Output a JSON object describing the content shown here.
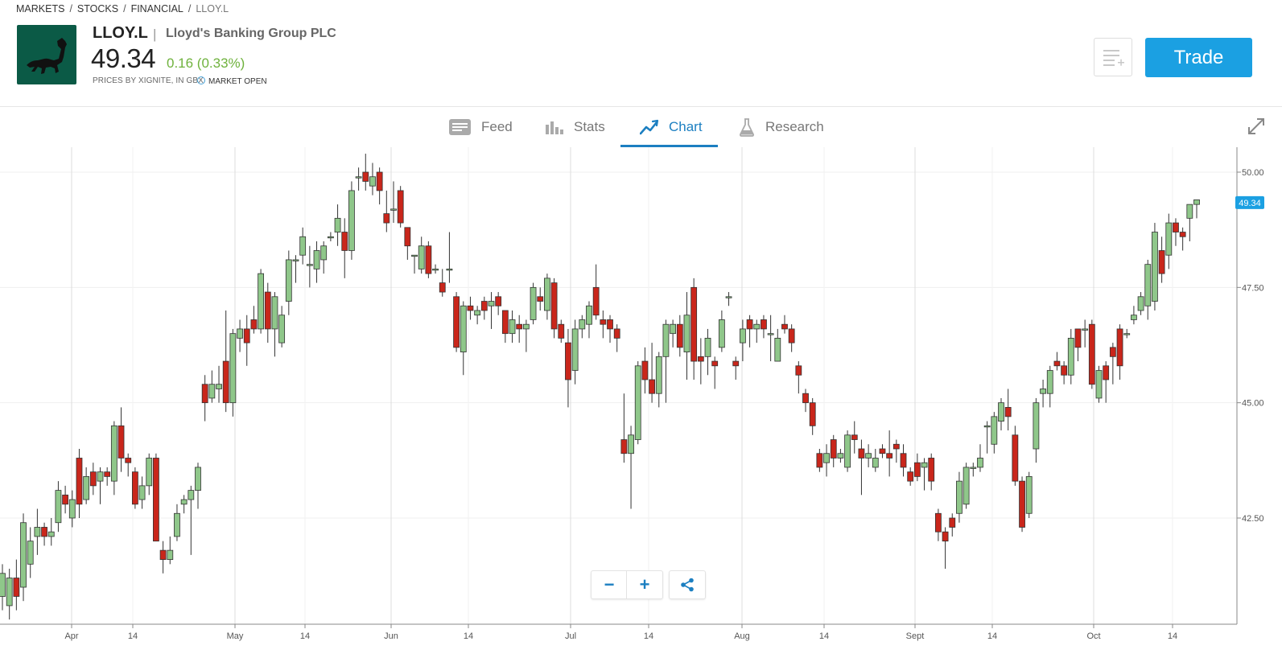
{
  "breadcrumb": [
    "MARKETS",
    "STOCKS",
    "FINANCIAL",
    "LLOY.L"
  ],
  "instrument": {
    "symbol": "LLOY.L",
    "name": "Lloyd's Banking Group PLC",
    "price": "49.34",
    "change": "0.16 (0.33%)",
    "price_source": "PRICES BY XIGNITE, IN GBX",
    "market_status": "MARKET OPEN"
  },
  "actions": {
    "trade_label": "Trade",
    "watchlist_icon": "add-to-watchlist-icon"
  },
  "tabs": [
    {
      "label": "Feed",
      "icon": "feed-icon",
      "active": false
    },
    {
      "label": "Stats",
      "icon": "stats-icon",
      "active": false
    },
    {
      "label": "Chart",
      "icon": "chart-icon",
      "active": true
    },
    {
      "label": "Research",
      "icon": "research-icon",
      "active": false
    }
  ],
  "colors": {
    "up": "#8fc78a",
    "down": "#c9261b",
    "accent": "#1c7fc1",
    "trade": "#1ba0e2",
    "change_positive": "#6fb23d"
  },
  "chart_data": {
    "type": "candlestick",
    "x_tick_labels": [
      "Apr",
      "14",
      "May",
      "14",
      "Jun",
      "14",
      "Jul",
      "14",
      "Aug",
      "14",
      "Sept",
      "14",
      "Oct",
      "14"
    ],
    "y_tick_labels": [
      "50.00",
      "47.50",
      "45.00",
      "42.50"
    ],
    "last_price_label": "49.34",
    "ylim": [
      40.4,
      50.6
    ],
    "grid": true,
    "candles": [
      [
        40.8,
        41.3,
        40.5,
        41.5
      ],
      [
        40.6,
        41.2,
        40.3,
        41.4
      ],
      [
        41.2,
        40.8,
        40.5,
        41.6
      ],
      [
        41.0,
        42.4,
        40.7,
        42.6
      ],
      [
        41.5,
        42.0,
        41.2,
        42.3
      ],
      [
        42.1,
        42.3,
        41.7,
        42.7
      ],
      [
        42.3,
        42.1,
        41.9,
        42.4
      ],
      [
        42.1,
        42.2,
        41.9,
        42.5
      ],
      [
        42.4,
        43.1,
        42.2,
        43.3
      ],
      [
        43.0,
        42.8,
        42.6,
        43.2
      ],
      [
        42.5,
        42.9,
        42.3,
        43.1
      ],
      [
        43.8,
        42.8,
        42.5,
        44.0
      ],
      [
        42.9,
        43.4,
        42.8,
        43.6
      ],
      [
        43.5,
        43.2,
        43.0,
        43.7
      ],
      [
        43.3,
        43.5,
        42.8,
        43.6
      ],
      [
        43.5,
        43.4,
        43.2,
        43.6
      ],
      [
        43.3,
        44.5,
        43.0,
        44.6
      ],
      [
        44.5,
        43.8,
        43.5,
        44.9
      ],
      [
        43.8,
        43.7,
        43.4,
        43.9
      ],
      [
        43.5,
        42.8,
        42.7,
        43.6
      ],
      [
        42.9,
        43.2,
        42.7,
        43.4
      ],
      [
        43.2,
        43.8,
        43.0,
        43.9
      ],
      [
        43.8,
        42.0,
        42.1,
        43.9
      ],
      [
        41.8,
        41.6,
        41.3,
        42.0
      ],
      [
        41.6,
        41.8,
        41.5,
        42.1
      ],
      [
        42.1,
        42.6,
        42.0,
        42.8
      ],
      [
        42.8,
        42.9,
        42.6,
        43.0
      ],
      [
        42.9,
        43.1,
        41.7,
        43.2
      ],
      [
        43.1,
        43.6,
        42.7,
        43.7
      ],
      [
        45.4,
        45.0,
        44.6,
        45.6
      ],
      [
        45.1,
        45.4,
        45.0,
        45.7
      ],
      [
        45.3,
        45.4,
        45.0,
        45.8
      ],
      [
        45.9,
        45.0,
        44.8,
        47.0
      ],
      [
        45.0,
        46.5,
        44.7,
        46.6
      ],
      [
        46.4,
        46.6,
        46.1,
        46.8
      ],
      [
        46.6,
        46.3,
        45.8,
        46.9
      ],
      [
        46.8,
        46.6,
        46.5,
        47.1
      ],
      [
        46.6,
        47.8,
        46.5,
        47.9
      ],
      [
        47.4,
        46.6,
        46.3,
        47.6
      ],
      [
        46.6,
        47.3,
        46.0,
        47.4
      ],
      [
        46.3,
        46.9,
        46.2,
        47.1
      ],
      [
        47.2,
        48.1,
        46.9,
        48.3
      ],
      [
        48.1,
        48.1,
        47.6,
        48.2
      ],
      [
        48.2,
        48.6,
        48.0,
        48.8
      ],
      [
        48.0,
        48.0,
        47.5,
        48.4
      ],
      [
        47.9,
        48.3,
        47.6,
        48.5
      ],
      [
        48.1,
        48.4,
        47.8,
        48.5
      ],
      [
        48.6,
        48.6,
        48.5,
        48.7
      ],
      [
        48.7,
        49.0,
        48.4,
        49.3
      ],
      [
        48.7,
        48.3,
        47.7,
        49.0
      ],
      [
        48.3,
        49.6,
        48.1,
        49.8
      ],
      [
        49.9,
        49.9,
        49.6,
        50.1
      ],
      [
        50.0,
        49.8,
        49.6,
        50.4
      ],
      [
        49.7,
        49.9,
        49.5,
        50.2
      ],
      [
        50.0,
        49.6,
        49.3,
        50.1
      ],
      [
        49.1,
        48.9,
        48.7,
        49.6
      ],
      [
        49.2,
        49.2,
        48.9,
        49.8
      ],
      [
        49.6,
        48.9,
        48.8,
        49.7
      ],
      [
        48.8,
        48.4,
        48.1,
        48.8
      ],
      [
        48.2,
        48.2,
        47.8,
        48.2
      ],
      [
        47.9,
        48.4,
        47.8,
        48.6
      ],
      [
        48.4,
        47.8,
        47.7,
        48.5
      ],
      [
        47.9,
        47.9,
        47.8,
        48.0
      ],
      [
        47.6,
        47.4,
        47.3,
        47.9
      ],
      [
        47.9,
        47.9,
        47.6,
        48.7
      ],
      [
        47.3,
        46.2,
        46.1,
        47.4
      ],
      [
        46.1,
        47.1,
        45.6,
        47.2
      ],
      [
        47.1,
        47.0,
        46.8,
        47.3
      ],
      [
        46.9,
        47.0,
        46.7,
        47.1
      ],
      [
        47.2,
        47.0,
        46.8,
        47.3
      ],
      [
        47.1,
        47.2,
        46.6,
        47.4
      ],
      [
        47.3,
        47.1,
        46.9,
        47.4
      ],
      [
        47.0,
        46.5,
        46.3,
        47.0
      ],
      [
        46.5,
        46.8,
        46.3,
        47.0
      ],
      [
        46.7,
        46.6,
        46.3,
        46.9
      ],
      [
        46.6,
        46.7,
        46.1,
        46.8
      ],
      [
        46.8,
        47.5,
        46.7,
        47.6
      ],
      [
        47.3,
        47.2,
        47.0,
        47.5
      ],
      [
        47.0,
        47.7,
        46.8,
        47.8
      ],
      [
        47.6,
        46.6,
        46.4,
        47.7
      ],
      [
        46.7,
        46.4,
        46.3,
        46.8
      ],
      [
        46.3,
        45.5,
        44.9,
        46.6
      ],
      [
        45.7,
        46.6,
        45.4,
        46.8
      ],
      [
        46.6,
        46.8,
        46.4,
        46.9
      ],
      [
        46.7,
        47.1,
        46.4,
        47.2
      ],
      [
        47.5,
        46.9,
        46.8,
        48.0
      ],
      [
        46.8,
        46.7,
        46.4,
        47.0
      ],
      [
        46.8,
        46.6,
        46.3,
        46.9
      ],
      [
        46.6,
        46.4,
        46.1,
        46.7
      ],
      [
        44.2,
        43.9,
        43.7,
        45.2
      ],
      [
        43.9,
        44.3,
        42.7,
        44.5
      ],
      [
        44.2,
        45.8,
        44.1,
        45.9
      ],
      [
        45.9,
        45.5,
        45.2,
        46.2
      ],
      [
        45.5,
        45.2,
        45.0,
        46.3
      ],
      [
        45.2,
        46.0,
        44.9,
        46.1
      ],
      [
        46.0,
        46.7,
        45.0,
        46.8
      ],
      [
        46.5,
        46.7,
        46.2,
        46.8
      ],
      [
        46.7,
        46.2,
        46.0,
        46.9
      ],
      [
        46.1,
        46.9,
        45.5,
        47.4
      ],
      [
        47.5,
        45.9,
        45.5,
        47.7
      ],
      [
        46.0,
        45.9,
        45.4,
        46.4
      ],
      [
        46.0,
        46.4,
        45.6,
        46.6
      ],
      [
        45.9,
        45.8,
        45.3,
        46.0
      ],
      [
        46.2,
        46.8,
        46.1,
        47.0
      ],
      [
        47.3,
        47.3,
        47.1,
        47.4
      ],
      [
        45.9,
        45.8,
        45.5,
        46.0
      ],
      [
        46.3,
        46.6,
        45.9,
        46.8
      ],
      [
        46.8,
        46.6,
        46.2,
        46.9
      ],
      [
        46.6,
        46.7,
        46.3,
        46.8
      ],
      [
        46.8,
        46.6,
        46.4,
        46.9
      ],
      [
        46.5,
        46.5,
        45.9,
        46.9
      ],
      [
        45.9,
        46.4,
        45.9,
        46.6
      ],
      [
        46.7,
        46.6,
        46.5,
        46.9
      ],
      [
        46.6,
        46.3,
        46.1,
        46.7
      ],
      [
        45.8,
        45.6,
        45.2,
        45.9
      ],
      [
        45.2,
        45.0,
        44.8,
        45.3
      ],
      [
        45.0,
        44.5,
        44.3,
        45.1
      ],
      [
        43.9,
        43.6,
        43.5,
        44.0
      ],
      [
        43.7,
        43.9,
        43.4,
        44.1
      ],
      [
        44.2,
        43.8,
        43.6,
        44.3
      ],
      [
        43.8,
        43.9,
        43.7,
        44.0
      ],
      [
        43.6,
        44.3,
        43.5,
        44.4
      ],
      [
        44.3,
        44.2,
        43.9,
        44.6
      ],
      [
        44.0,
        43.8,
        43.0,
        44.2
      ],
      [
        43.8,
        43.9,
        43.6,
        44.1
      ],
      [
        43.6,
        43.8,
        43.5,
        44.0
      ],
      [
        44.0,
        43.9,
        43.8,
        44.1
      ],
      [
        43.9,
        43.8,
        43.4,
        44.4
      ],
      [
        44.1,
        44.0,
        43.7,
        44.2
      ],
      [
        43.9,
        43.6,
        43.4,
        44.1
      ],
      [
        43.5,
        43.3,
        43.2,
        43.6
      ],
      [
        43.7,
        43.4,
        43.3,
        43.9
      ],
      [
        43.6,
        43.7,
        43.1,
        43.8
      ],
      [
        43.8,
        43.3,
        43.1,
        43.9
      ],
      [
        42.6,
        42.2,
        42.0,
        42.7
      ],
      [
        42.2,
        42.0,
        41.4,
        42.3
      ],
      [
        42.5,
        42.3,
        42.1,
        42.6
      ],
      [
        42.6,
        43.3,
        42.4,
        43.5
      ],
      [
        42.8,
        43.6,
        42.7,
        43.7
      ],
      [
        43.6,
        43.6,
        43.4,
        43.7
      ],
      [
        43.6,
        43.8,
        43.5,
        44.1
      ],
      [
        44.5,
        44.5,
        43.9,
        44.6
      ],
      [
        44.1,
        44.7,
        43.9,
        44.8
      ],
      [
        44.6,
        45.0,
        44.4,
        45.1
      ],
      [
        44.9,
        44.7,
        44.4,
        45.3
      ],
      [
        44.3,
        43.3,
        43.2,
        44.5
      ],
      [
        43.3,
        42.3,
        42.2,
        43.4
      ],
      [
        42.6,
        43.4,
        42.5,
        43.5
      ],
      [
        44.0,
        45.0,
        43.7,
        45.1
      ],
      [
        45.2,
        45.3,
        44.9,
        45.5
      ],
      [
        45.2,
        45.7,
        44.9,
        45.8
      ],
      [
        45.9,
        45.8,
        45.7,
        46.1
      ],
      [
        45.8,
        45.6,
        45.4,
        45.9
      ],
      [
        45.6,
        46.4,
        45.4,
        46.6
      ],
      [
        46.6,
        46.2,
        45.9,
        46.6
      ],
      [
        46.6,
        46.6,
        46.2,
        46.8
      ],
      [
        46.7,
        45.4,
        45.3,
        46.8
      ],
      [
        45.1,
        45.7,
        45.0,
        45.8
      ],
      [
        45.8,
        45.5,
        45.0,
        45.9
      ],
      [
        46.2,
        46.0,
        45.4,
        46.3
      ],
      [
        46.6,
        45.8,
        45.5,
        46.7
      ],
      [
        46.5,
        46.5,
        46.4,
        46.6
      ],
      [
        46.8,
        46.9,
        46.7,
        47.1
      ],
      [
        47.0,
        47.3,
        46.9,
        47.4
      ],
      [
        47.1,
        48.0,
        46.8,
        48.1
      ],
      [
        47.2,
        48.7,
        47.0,
        48.9
      ],
      [
        48.3,
        47.8,
        47.6,
        48.6
      ],
      [
        48.2,
        48.9,
        47.9,
        49.1
      ],
      [
        48.9,
        48.7,
        48.4,
        49.0
      ],
      [
        48.7,
        48.6,
        48.3,
        48.8
      ],
      [
        49.0,
        49.3,
        48.5,
        49.3
      ],
      [
        49.3,
        49.4,
        49.0,
        49.4
      ]
    ]
  }
}
